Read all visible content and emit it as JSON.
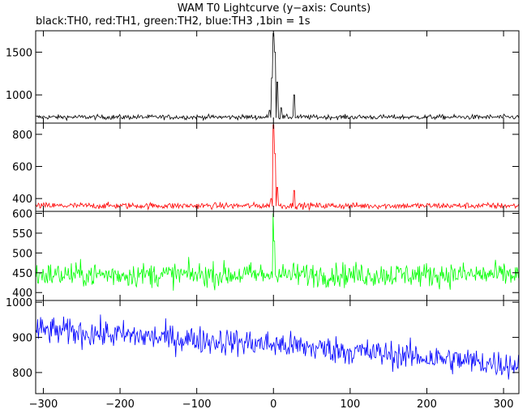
{
  "title": "WAM T0 Lightcurve (y−axis: Counts)",
  "subtitle": "black:TH0, red:TH1, green:TH2, blue:TH3 ,1bin = 1s",
  "chart_data": {
    "type": "line",
    "title": "WAM T0 Lightcurve (y−axis: Counts)",
    "subtitle": "black:TH0, red:TH1, green:TH2, blue:TH3 ,1bin = 1s",
    "xlim": [
      -310,
      320
    ],
    "x_ticks": [
      -300,
      -200,
      -100,
      0,
      100,
      200,
      300
    ],
    "grid": false,
    "panels": [
      {
        "name": "TH0",
        "color": "#000000",
        "ylim": [
          670,
          1750
        ],
        "y_ticks": [
          1000,
          1500
        ],
        "baseline": 740,
        "noise": 20,
        "features": [
          {
            "x": -5,
            "y": 820
          },
          {
            "x": -2,
            "y": 1200
          },
          {
            "x": 0,
            "y": 1720
          },
          {
            "x": 2,
            "y": 1500
          },
          {
            "x": 5,
            "y": 1150
          },
          {
            "x": 10,
            "y": 850
          },
          {
            "x": 27,
            "y": 1000
          }
        ]
      },
      {
        "name": "TH1",
        "color": "#ff0000",
        "ylim": [
          320,
          870
        ],
        "y_ticks": [
          400,
          600,
          800
        ],
        "baseline": 355,
        "noise": 14,
        "features": [
          {
            "x": -3,
            "y": 400
          },
          {
            "x": 0,
            "y": 860
          },
          {
            "x": 2,
            "y": 680
          },
          {
            "x": 5,
            "y": 470
          },
          {
            "x": 27,
            "y": 450
          }
        ]
      },
      {
        "name": "TH2",
        "color": "#00ff00",
        "ylim": [
          380,
          605
        ],
        "y_ticks": [
          400,
          450,
          500,
          550,
          600
        ],
        "baseline": 445,
        "noise": 22,
        "features": [
          {
            "x": 0,
            "y": 600
          },
          {
            "x": 1,
            "y": 530
          }
        ]
      },
      {
        "name": "TH3",
        "color": "#0000ff",
        "ylim": [
          740,
          1005
        ],
        "y_ticks": [
          800,
          900,
          1000
        ],
        "trend": [
          [
            -300,
            920
          ],
          [
            0,
            880
          ],
          [
            320,
            820
          ]
        ],
        "noise": 28,
        "features": []
      }
    ]
  }
}
